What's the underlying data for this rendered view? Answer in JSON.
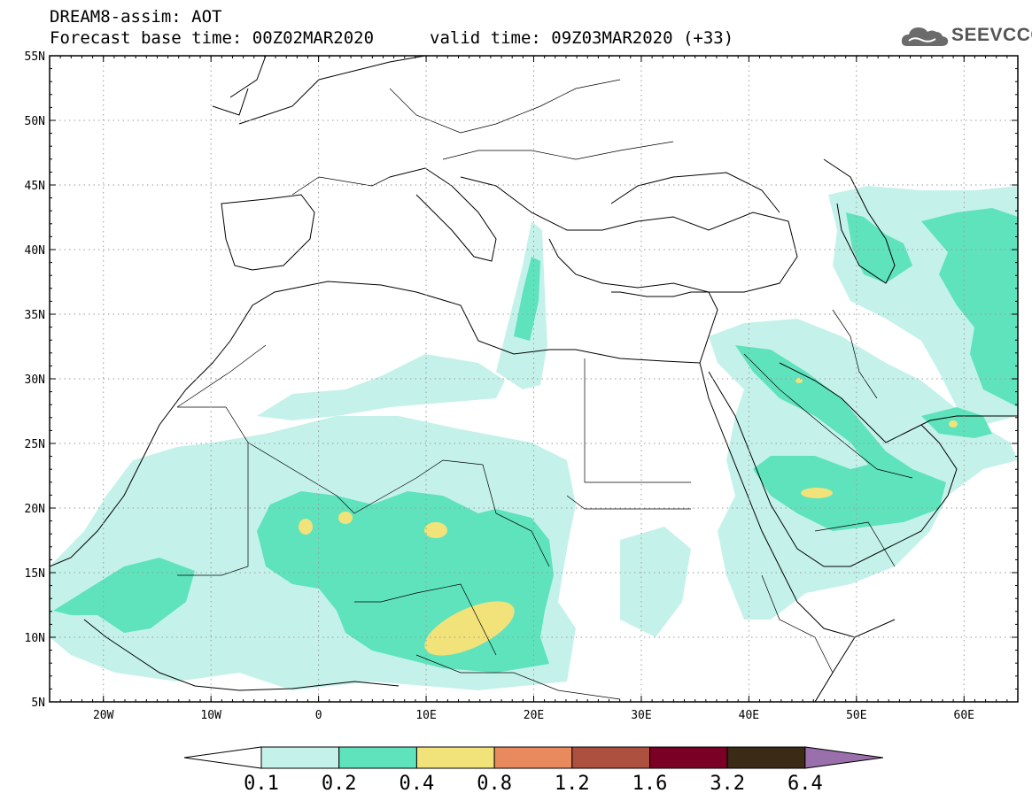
{
  "header": {
    "title_line1": "DREAM8-assim: AOT",
    "title_line2": "Forecast base time: 00Z02MAR2020",
    "valid_time": "valid time: 09Z03MAR2020 (+33)",
    "logo_text": "SEEVCCC"
  },
  "map": {
    "variable": "AOT",
    "lon_range": [
      -25,
      65
    ],
    "lat_range": [
      5,
      55
    ],
    "lat_labels": [
      "55N",
      "50N",
      "45N",
      "40N",
      "35N",
      "30N",
      "25N",
      "20N",
      "15N",
      "10N",
      "5N"
    ],
    "lon_labels": [
      "20W",
      "10W",
      "0",
      "10E",
      "20E",
      "30E",
      "40E",
      "50E",
      "60E"
    ],
    "gridlines": "dotted"
  },
  "colorbar": {
    "levels": [
      "0.1",
      "0.2",
      "0.4",
      "0.8",
      "1.2",
      "1.6",
      "3.2",
      "6.4"
    ],
    "colors": [
      "#ffffff",
      "#c4f2ea",
      "#5ee3bd",
      "#f2e27a",
      "#e88a5e",
      "#ad5040",
      "#7b0025",
      "#3b2a15",
      "#9a70ac"
    ]
  }
}
